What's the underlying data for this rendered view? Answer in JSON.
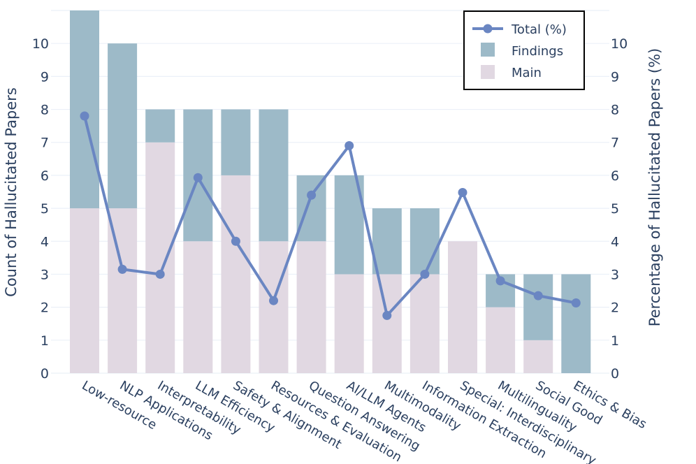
{
  "chart_data": {
    "type": "bar",
    "stacked": true,
    "categories": [
      "Low-resource",
      "NLP Applications",
      "Interpretability",
      "LLM Efficiency",
      "Safety & Alignment",
      "Resources & Evaluation",
      "Question Answering",
      "AI/LLM Agents",
      "Multimodality",
      "Information Extraction",
      "Special: Interdisciplinary",
      "Multilinguality",
      "Social Good",
      "Ethics & Bias"
    ],
    "series": [
      {
        "name": "Main",
        "type": "bar",
        "axis": "left",
        "color": "#e1d8e2",
        "values": [
          5,
          5,
          7,
          4,
          6,
          4,
          4,
          3,
          3,
          3,
          4,
          2,
          1,
          0
        ]
      },
      {
        "name": "Findings",
        "type": "bar",
        "axis": "left",
        "color": "#9dbac8",
        "values": [
          6,
          5,
          1,
          4,
          2,
          4,
          2,
          3,
          2,
          2,
          0,
          1,
          2,
          3
        ]
      },
      {
        "name": "Total (%)",
        "type": "line",
        "axis": "right",
        "color": "#6a86c2",
        "values": [
          7.8,
          3.15,
          3.0,
          5.93,
          4.0,
          2.2,
          5.4,
          6.9,
          1.75,
          3.0,
          5.48,
          2.8,
          2.35,
          2.13
        ]
      }
    ],
    "ylabel": "Count of Hallucitated Papers",
    "y2label": "Percentage of Hallucitated Papers (%)",
    "ylim": [
      0,
      11
    ],
    "y2lim": [
      0,
      11
    ],
    "yticks": [
      0,
      1,
      2,
      3,
      4,
      5,
      6,
      7,
      8,
      9,
      10
    ],
    "y2ticks": [
      0,
      1,
      2,
      3,
      4,
      5,
      6,
      7,
      8,
      9,
      10
    ],
    "legend": {
      "position": "top-right",
      "entries": [
        "Total (%)",
        "Findings",
        "Main"
      ]
    },
    "grid": true
  }
}
